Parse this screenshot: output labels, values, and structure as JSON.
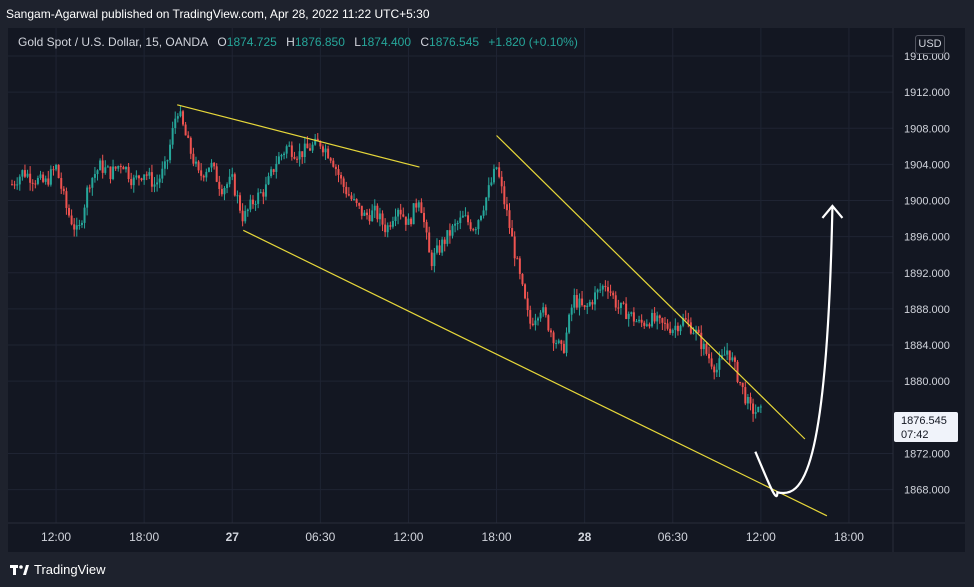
{
  "header": {
    "publisher": "Sangam-Agarwal published on TradingView.com, Apr 28, 2022 11:22 UTC+5:30"
  },
  "legend": {
    "symbol": "Gold Spot / U.S. Dollar, 15, OANDA",
    "open_label": "O",
    "open": "1874.725",
    "high_label": "H",
    "high": "1876.850",
    "low_label": "L",
    "low": "1874.400",
    "close_label": "C",
    "close": "1876.545",
    "change": "+1.820 (+0.10%)"
  },
  "currency": "USD",
  "price_label": {
    "price": "1876.545",
    "countdown": "07:42"
  },
  "footer": {
    "brand": "TradingView"
  },
  "colors": {
    "background": "#131722",
    "grid": "#1f2433",
    "up": "#26a69a",
    "down": "#ef5350",
    "trendline": "#e6d73a",
    "arrow": "#ffffff",
    "text": "#d1d4dc"
  },
  "icons": {
    "brand": "tradingview-logo-icon"
  },
  "chart_data": {
    "type": "candlestick",
    "y_ticks": [
      "1916.000",
      "1912.000",
      "1908.000",
      "1904.000",
      "1900.000",
      "1896.000",
      "1892.000",
      "1888.000",
      "1884.000",
      "1880.000",
      "1872.000",
      "1868.000"
    ],
    "x_ticks": [
      "12:00",
      "18:00",
      "27",
      "06:30",
      "12:00",
      "18:00",
      "28",
      "06:30",
      "12:00",
      "18:00"
    ],
    "ylim": [
      1864.3,
      1919.1
    ],
    "x_index": [
      0,
      80
    ],
    "x_tick_index": [
      4,
      12,
      20,
      28,
      36,
      44,
      52,
      60,
      68,
      76
    ],
    "path_points": [
      [
        0,
        1901.8
      ],
      [
        1,
        1903.2
      ],
      [
        2,
        1902.4
      ],
      [
        3,
        1901.9
      ],
      [
        4,
        1903.7
      ],
      [
        5,
        1898.9
      ],
      [
        6,
        1896.2
      ],
      [
        7,
        1902.1
      ],
      [
        8,
        1903.8
      ],
      [
        9,
        1903.0
      ],
      [
        10,
        1904.3
      ],
      [
        11,
        1902.1
      ],
      [
        12,
        1903.2
      ],
      [
        13,
        1901.7
      ],
      [
        14,
        1903.8
      ],
      [
        15,
        1910.3
      ],
      [
        16,
        1906.2
      ],
      [
        17,
        1902.6
      ],
      [
        18,
        1904.1
      ],
      [
        19,
        1901.4
      ],
      [
        20,
        1902.2
      ],
      [
        21,
        1898.0
      ],
      [
        22,
        1900.1
      ],
      [
        23,
        1901.2
      ],
      [
        24,
        1904.3
      ],
      [
        25,
        1906.0
      ],
      [
        26,
        1905.1
      ],
      [
        27,
        1905.8
      ],
      [
        28,
        1906.4
      ],
      [
        29,
        1904.9
      ],
      [
        30,
        1901.8
      ],
      [
        31,
        1899.8
      ],
      [
        32,
        1898.3
      ],
      [
        33,
        1898.7
      ],
      [
        34,
        1896.8
      ],
      [
        35,
        1899.5
      ],
      [
        36,
        1897.4
      ],
      [
        37,
        1900.6
      ],
      [
        38,
        1893.1
      ],
      [
        39,
        1895.1
      ],
      [
        40,
        1896.8
      ],
      [
        41,
        1898.1
      ],
      [
        42,
        1897.0
      ],
      [
        43,
        1900.1
      ],
      [
        44,
        1903.7
      ],
      [
        45,
        1898.2
      ],
      [
        46,
        1892.1
      ],
      [
        47,
        1886.3
      ],
      [
        48,
        1888.2
      ],
      [
        49,
        1885.4
      ],
      [
        50,
        1883.1
      ],
      [
        51,
        1889.2
      ],
      [
        52,
        1887.8
      ],
      [
        53,
        1889.6
      ],
      [
        54,
        1890.9
      ],
      [
        55,
        1888.2
      ],
      [
        56,
        1887.5
      ],
      [
        57,
        1886.3
      ],
      [
        58,
        1886.9
      ],
      [
        59,
        1886.2
      ],
      [
        60,
        1885.9
      ],
      [
        61,
        1886.8
      ],
      [
        62,
        1885.6
      ],
      [
        63,
        1883.2
      ],
      [
        64,
        1881.3
      ],
      [
        65,
        1883.6
      ],
      [
        66,
        1880.2
      ],
      [
        67,
        1876.9
      ],
      [
        68,
        1876.5
      ]
    ],
    "trendlines": [
      {
        "name": "upper-left",
        "p1": [
          15,
          1910.6
        ],
        "p2": [
          37,
          1903.7
        ]
      },
      {
        "name": "lower-left",
        "p1": [
          21,
          1896.7
        ],
        "p2": [
          74,
          1865.1
        ]
      },
      {
        "name": "upper-right",
        "p1": [
          44,
          1907.2
        ],
        "p2": [
          72,
          1873.6
        ]
      }
    ],
    "projection": {
      "points": [
        [
          67.5,
          1872.2
        ],
        [
          69.5,
          1867.7
        ],
        [
          72,
          1869.5
        ],
        [
          74.5,
          1899.4
        ]
      ]
    }
  }
}
